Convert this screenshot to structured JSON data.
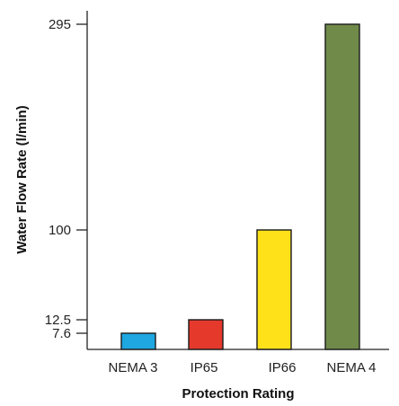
{
  "chart_data": {
    "type": "bar",
    "title": "",
    "xlabel": "Protection Rating",
    "ylabel": "Water Flow Rate (l/min)",
    "categories": [
      "NEMA 3",
      "IP65",
      "IP66",
      "NEMA 4"
    ],
    "values": [
      7.6,
      12.5,
      100,
      295
    ],
    "colors": [
      "#1ea7e1",
      "#e5392c",
      "#ffe11a",
      "#708a4a"
    ],
    "y_tick_values": [
      7.6,
      12.5,
      100,
      295
    ],
    "y_tick_labels": [
      "7.6",
      "12.5",
      "100",
      "295"
    ],
    "grid": false,
    "legend": "none"
  }
}
